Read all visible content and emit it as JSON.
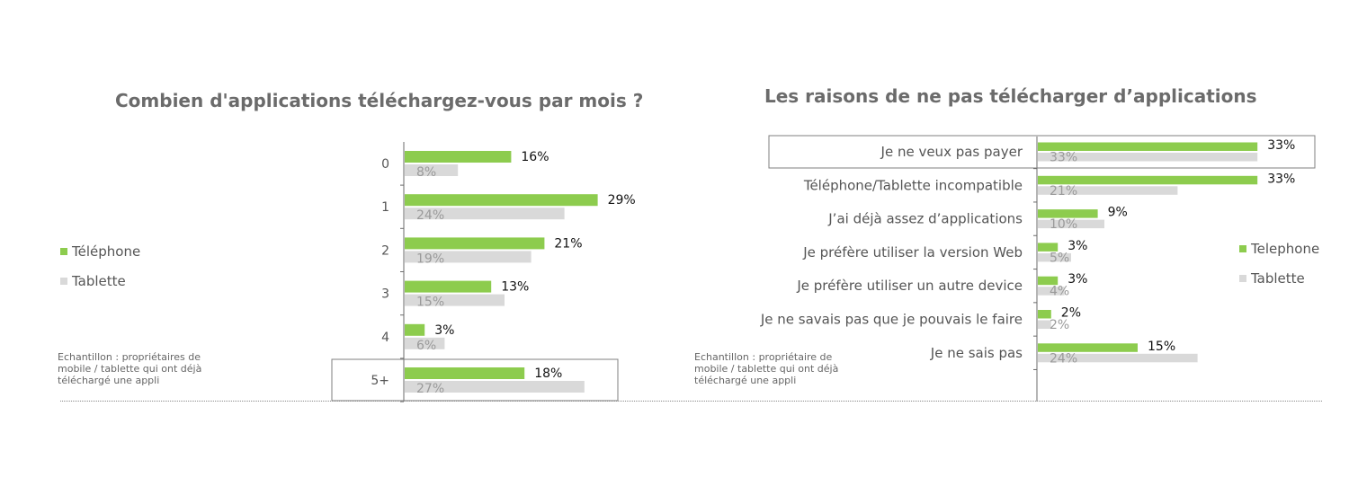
{
  "colors": {
    "telephone": "#8dcc4e",
    "tablet": "#d9d9d9",
    "axis": "#6b6b6b",
    "highlight_box": "#7f7f7f"
  },
  "left": {
    "title": "Combien d'applications téléchargez-vous par mois ?",
    "legend": [
      "Téléphone",
      "Tablette"
    ],
    "note": [
      "Echantillon : propriétaires de",
      "mobile / tablette qui ont déjà",
      "téléchargé une appli"
    ]
  },
  "right": {
    "title": "Les raisons de ne pas télécharger d’applications",
    "legend": [
      "Telephone",
      "Tablette"
    ],
    "note": [
      "Echantillon : propriétaire de",
      "mobile / tablette qui ont déjà",
      "téléchargé une appli"
    ]
  },
  "chart_data": [
    {
      "type": "bar",
      "orientation": "horizontal",
      "title": "Combien d'applications téléchargez-vous par mois ?",
      "categories": [
        "0",
        "1",
        "2",
        "3",
        "4",
        "5+"
      ],
      "highlighted": "5+",
      "series": [
        {
          "name": "Téléphone",
          "values": [
            16,
            29,
            21,
            13,
            3,
            18
          ],
          "labels": [
            "16%",
            "29%",
            "21%",
            "13%",
            "3%",
            "18%"
          ]
        },
        {
          "name": "Tablette",
          "values": [
            8,
            24,
            19,
            15,
            6,
            27
          ],
          "labels": [
            "8%",
            "24%",
            "19%",
            "15%",
            "6%",
            "27%"
          ]
        }
      ],
      "legend_position": "left"
    },
    {
      "type": "bar",
      "orientation": "horizontal",
      "title": "Les raisons de ne pas télécharger d’applications",
      "categories": [
        "Je ne veux pas payer",
        "Téléphone/Tablette incompatible",
        "J’ai déjà assez d’applications",
        "Je préfère utiliser la version Web",
        "Je préfère utiliser un autre device",
        "Je ne savais pas que je pouvais le faire",
        "Je ne sais pas"
      ],
      "highlighted": "Je ne veux pas payer",
      "series": [
        {
          "name": "Telephone",
          "values": [
            33,
            33,
            9,
            3,
            3,
            2,
            15
          ],
          "labels": [
            "33%",
            "33%",
            "9%",
            "3%",
            "3%",
            "2%",
            "15%"
          ]
        },
        {
          "name": "Tablette",
          "values": [
            33,
            21,
            10,
            5,
            4,
            2,
            24
          ],
          "labels": [
            "33%",
            "21%",
            "10%",
            "5%",
            "4%",
            "2%",
            "24%"
          ]
        }
      ],
      "legend_position": "right"
    }
  ]
}
